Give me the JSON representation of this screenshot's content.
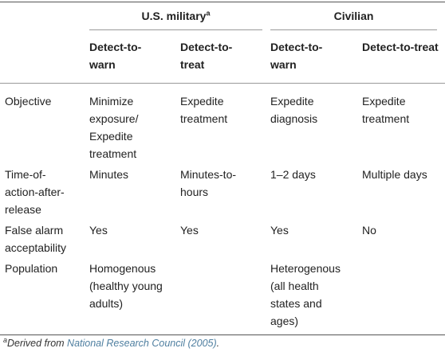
{
  "header": {
    "groups": [
      {
        "label": "U.S. military",
        "note": "a"
      },
      {
        "label": "Civilian"
      }
    ],
    "columns": [
      "Detect-to-warn",
      "Detect-to-treat",
      "Detect-to-warn",
      "Detect-to-treat"
    ]
  },
  "rows": [
    {
      "label": "Objective",
      "cells": [
        "Minimize exposure/ Expedite treatment",
        "Expedite treatment",
        "Expedite diagnosis",
        "Expedite treatment"
      ]
    },
    {
      "label": "Time-of-action-after-release",
      "cells": [
        "Minutes",
        "Minutes-to-hours",
        "1–2 days",
        "Multiple days"
      ]
    },
    {
      "label": "False alarm acceptability",
      "cells": [
        "Yes",
        "Yes",
        "Yes",
        "No"
      ]
    },
    {
      "label": "Population",
      "cells": [
        "Homogenous (healthy young adults)",
        null,
        "Heterogenous (all health states and ages)",
        null
      ]
    }
  ],
  "footnote": {
    "marker": "a",
    "text": "Derived from ",
    "link": "National Research Council (2005)",
    "end": "."
  }
}
